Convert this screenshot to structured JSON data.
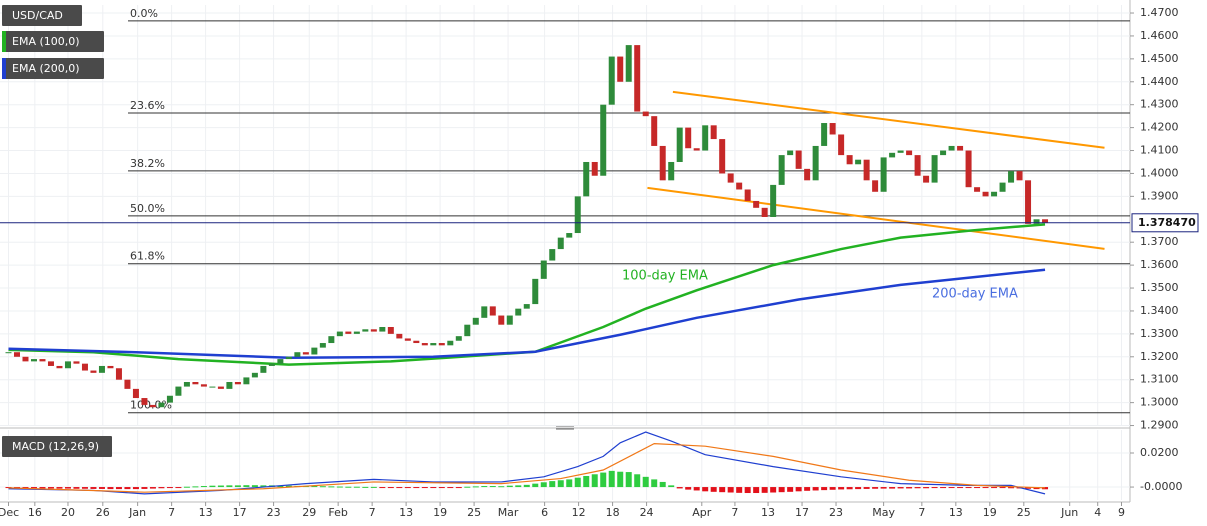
{
  "chart_data": [
    {
      "type": "candlestick",
      "title": "USD/CAD",
      "closes": [
        1.322,
        1.32,
        1.318,
        1.319,
        1.318,
        1.316,
        1.315,
        1.318,
        1.317,
        1.314,
        1.313,
        1.316,
        1.315,
        1.31,
        1.306,
        1.302,
        1.299,
        1.298,
        1.3,
        1.303,
        1.307,
        1.309,
        1.308,
        1.307,
        1.307,
        1.306,
        1.309,
        1.308,
        1.311,
        1.313,
        1.316,
        1.317,
        1.319,
        1.32,
        1.322,
        1.321,
        1.324,
        1.326,
        1.329,
        1.331,
        1.33,
        1.331,
        1.332,
        1.331,
        1.333,
        1.33,
        1.328,
        1.327,
        1.326,
        1.325,
        1.326,
        1.325,
        1.327,
        1.329,
        1.334,
        1.337,
        1.342,
        1.338,
        1.334,
        1.338,
        1.341,
        1.343,
        1.354,
        1.362,
        1.367,
        1.372,
        1.374,
        1.39,
        1.405,
        1.399,
        1.43,
        1.451,
        1.44,
        1.456,
        1.427,
        1.425,
        1.412,
        1.397,
        1.405,
        1.42,
        1.411,
        1.41,
        1.421,
        1.415,
        1.4,
        1.396,
        1.393,
        1.388,
        1.385,
        1.381,
        1.395,
        1.408,
        1.41,
        1.402,
        1.397,
        1.412,
        1.422,
        1.417,
        1.408,
        1.404,
        1.406,
        1.397,
        1.392,
        1.407,
        1.409,
        1.41,
        1.408,
        1.399,
        1.396,
        1.408,
        1.41,
        1.412,
        1.41,
        1.394,
        1.392,
        1.39,
        1.392,
        1.396,
        1.401,
        1.397,
        1.378,
        1.38,
        1.3785
      ],
      "up_color": "#2e8b3a",
      "down_color": "#c62828",
      "series": [
        {
          "name": "EMA (100,0)",
          "color": "#22b222",
          "x": [
            0,
            10,
            20,
            33,
            45,
            52,
            62,
            70,
            75,
            81,
            90,
            98,
            105,
            113,
            122
          ],
          "values": [
            1.323,
            1.322,
            1.319,
            1.3166,
            1.318,
            1.3197,
            1.3222,
            1.333,
            1.341,
            1.349,
            1.36,
            1.367,
            1.372,
            1.375,
            1.3778
          ]
        },
        {
          "name": "EMA (200,0)",
          "color": "#1f3fd0",
          "x": [
            0,
            15,
            33,
            50,
            62,
            72,
            81,
            93,
            105,
            122
          ],
          "values": [
            1.3235,
            1.322,
            1.3196,
            1.32,
            1.3222,
            1.3296,
            1.337,
            1.345,
            1.3514,
            1.358
          ]
        }
      ],
      "fib_levels": [
        {
          "value": 1.4666,
          "label": "0.0%"
        },
        {
          "value": 1.4264,
          "label": "23.6%"
        },
        {
          "value": 1.4011,
          "label": "38.2%"
        },
        {
          "value": 1.3815,
          "label": "50.0%"
        },
        {
          "value": 1.3606,
          "label": "61.8%"
        },
        {
          "value": 1.2956,
          "label": "100.0%"
        }
      ],
      "channel": [
        {
          "x": [
            78.2,
            129
          ],
          "values": [
            1.4356,
            1.4112
          ]
        },
        {
          "x": [
            75.2,
            129
          ],
          "values": [
            1.3937,
            1.3671
          ]
        }
      ],
      "channel_color": "#ff9800",
      "annotations": [
        {
          "text": "100-day EMA",
          "color": "#22b222"
        },
        {
          "text": "200-day EMA",
          "color": "#4a6ee0"
        }
      ],
      "last_price": {
        "value": 1.37847,
        "label": "1.378470"
      },
      "xlim": [
        -1,
        132
      ],
      "ylim": [
        1.2898,
        1.4735
      ],
      "yticks": [
        {
          "value": 1.47,
          "label": "1.4700"
        },
        {
          "value": 1.46,
          "label": "1.4600"
        },
        {
          "value": 1.45,
          "label": "1.4500"
        },
        {
          "value": 1.44,
          "label": "1.4400"
        },
        {
          "value": 1.43,
          "label": "1.4300"
        },
        {
          "value": 1.42,
          "label": "1.4200"
        },
        {
          "value": 1.41,
          "label": "1.4100"
        },
        {
          "value": 1.4,
          "label": "1.4000"
        },
        {
          "value": 1.39,
          "label": "1.3900"
        },
        {
          "value": 1.37,
          "label": "1.3700"
        },
        {
          "value": 1.36,
          "label": "1.3600"
        },
        {
          "value": 1.35,
          "label": "1.3500"
        },
        {
          "value": 1.34,
          "label": "1.3400"
        },
        {
          "value": 1.33,
          "label": "1.3300"
        },
        {
          "value": 1.32,
          "label": "1.3200"
        },
        {
          "value": 1.31,
          "label": "1.3100"
        },
        {
          "value": 1.3,
          "label": "1.3000"
        },
        {
          "value": 1.29,
          "label": "1.2900"
        }
      ],
      "grid": true
    },
    {
      "type": "macd",
      "title": "MACD (12,26,9)",
      "series": [
        {
          "color": "#1f3fd0",
          "x": [
            0,
            10,
            16,
            25,
            35,
            43,
            50,
            58,
            63,
            67,
            70,
            72,
            75,
            78,
            82,
            90,
            98,
            105,
            113,
            118,
            122
          ],
          "values": [
            -0.001,
            -0.002,
            -0.004,
            -0.002,
            0.002,
            0.0045,
            0.003,
            0.003,
            0.006,
            0.012,
            0.018,
            0.026,
            0.0323,
            0.027,
            0.019,
            0.012,
            0.006,
            0.002,
            0.001,
            0.001,
            -0.004
          ]
        },
        {
          "color": "#f07818",
          "x": [
            0,
            16,
            30,
            43,
            58,
            65,
            70,
            76,
            82,
            90,
            98,
            106,
            114,
            122
          ],
          "values": [
            -0.0005,
            -0.003,
            -0.001,
            0.003,
            0.002,
            0.005,
            0.01,
            0.0255,
            0.024,
            0.018,
            0.01,
            0.004,
            0.001,
            -0.0005
          ]
        }
      ],
      "histogram": [
        -0.0005,
        -0.0006,
        -0.0007,
        -0.0007,
        -0.0008,
        -0.0008,
        -0.0009,
        -0.0009,
        -0.001,
        -0.001,
        -0.0011,
        -0.0011,
        -0.0012,
        -0.0012,
        -0.0012,
        -0.0012,
        -0.0011,
        -0.0009,
        -0.0007,
        -0.0005,
        -0.0003,
        0.0002,
        0.0004,
        0.0006,
        0.0008,
        0.0009,
        0.001,
        0.001,
        0.0011,
        0.0011,
        0.001,
        0.001,
        0.0009,
        0.0008,
        0.0007,
        0.0006,
        0.0006,
        0.0005,
        0.0004,
        0.0003,
        0.0002,
        0.0002,
        0.0001,
        0.0001,
        -0.0002,
        -0.0003,
        -0.0004,
        -0.0005,
        -0.0005,
        -0.0004,
        -0.0004,
        -0.0003,
        -0.0003,
        -0.0002,
        0.0002,
        0.0004,
        0.0006,
        0.0006,
        0.0005,
        0.0008,
        0.001,
        0.0013,
        0.002,
        0.0028,
        0.0035,
        0.004,
        0.0045,
        0.0055,
        0.0065,
        0.0075,
        0.0085,
        0.0095,
        0.009,
        0.0088,
        0.0075,
        0.006,
        0.0045,
        0.003,
        0.001,
        -0.0008,
        -0.0015,
        -0.002,
        -0.0025,
        -0.0028,
        -0.003,
        -0.0032,
        -0.0034,
        -0.0035,
        -0.0035,
        -0.0034,
        -0.0032,
        -0.003,
        -0.0028,
        -0.0025,
        -0.0022,
        -0.002,
        -0.0018,
        -0.0016,
        -0.0014,
        -0.0013,
        -0.0012,
        -0.0011,
        -0.001,
        -0.0009,
        -0.0009,
        -0.0008,
        -0.0008,
        -0.0007,
        -0.0007,
        -0.0006,
        -0.0006,
        -0.0005,
        -0.0005,
        -0.0004,
        -0.0004,
        -0.0005,
        -0.0006,
        -0.0006,
        -0.0007,
        -0.0008,
        -0.001,
        -0.0012,
        -0.0013
      ],
      "histogram_up_color": "#2ecc40",
      "histogram_down_color": "#e3101a",
      "xlim": [
        -1,
        132
      ],
      "ylim": [
        -0.0076,
        0.0335
      ],
      "yticks": [
        {
          "value": 0.02,
          "label": "0.0200"
        },
        {
          "value": 0,
          "label": "-0.0000"
        }
      ],
      "xticks": [
        {
          "value": 0,
          "label": "Dec"
        },
        {
          "value": 3.1,
          "label": "16"
        },
        {
          "value": 7,
          "label": "20"
        },
        {
          "value": 11.1,
          "label": "26"
        },
        {
          "value": 15.2,
          "label": "Jan"
        },
        {
          "value": 19.2,
          "label": "7"
        },
        {
          "value": 23.2,
          "label": "13"
        },
        {
          "value": 27.2,
          "label": "17"
        },
        {
          "value": 31.2,
          "label": "23"
        },
        {
          "value": 35.4,
          "label": "29"
        },
        {
          "value": 38.8,
          "label": "Feb"
        },
        {
          "value": 42.8,
          "label": "7"
        },
        {
          "value": 46.8,
          "label": "13"
        },
        {
          "value": 50.8,
          "label": "19"
        },
        {
          "value": 54.8,
          "label": "25"
        },
        {
          "value": 58.8,
          "label": "Mar"
        },
        {
          "value": 63.1,
          "label": "6"
        },
        {
          "value": 67.1,
          "label": "12"
        },
        {
          "value": 71.1,
          "label": "18"
        },
        {
          "value": 75.1,
          "label": "24"
        },
        {
          "value": 81.6,
          "label": "Apr"
        },
        {
          "value": 85.5,
          "label": "7"
        },
        {
          "value": 89.4,
          "label": "13"
        },
        {
          "value": 93.4,
          "label": "17"
        },
        {
          "value": 97.4,
          "label": "23"
        },
        {
          "value": 103,
          "label": "May"
        },
        {
          "value": 107.5,
          "label": "7"
        },
        {
          "value": 111.5,
          "label": "13"
        },
        {
          "value": 115.5,
          "label": "19"
        },
        {
          "value": 119.5,
          "label": "25"
        },
        {
          "value": 124.9,
          "label": "Jun"
        },
        {
          "value": 128.2,
          "label": "4"
        },
        {
          "value": 131,
          "label": "9"
        }
      ],
      "grid": true
    }
  ]
}
